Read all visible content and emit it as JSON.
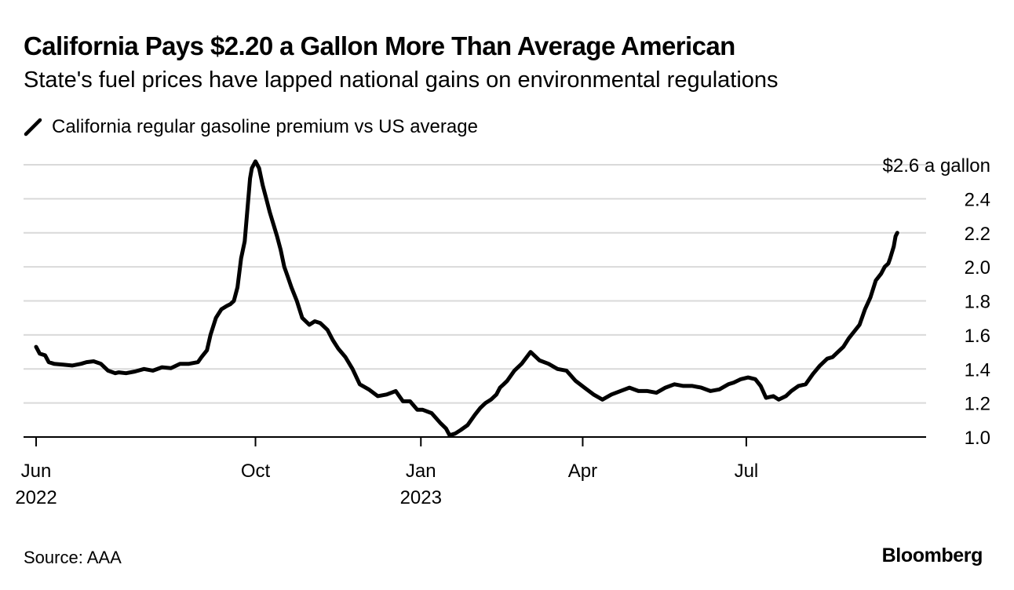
{
  "header": {
    "title": "California Pays $2.20 a Gallon More Than Average American",
    "subtitle": "State's fuel prices have lapped national gains on environmental regulations"
  },
  "legend": {
    "label": "California regular gasoline premium vs US average"
  },
  "footer": {
    "source": "Source: AAA",
    "brand": "Bloomberg"
  },
  "colors": {
    "line": "#000000",
    "grid": "#d9d9d9",
    "axis": "#000000"
  },
  "chart_data": {
    "type": "line",
    "title": "California Pays $2.20 a Gallon More Than Average American",
    "subtitle": "State's fuel prices have lapped national gains on environmental regulations",
    "ylabel": "$ a gallon",
    "ylim": [
      1.0,
      2.6
    ],
    "y_ticks": [
      {
        "value": 2.6,
        "label": "$2.6 a gallon"
      },
      {
        "value": 2.4,
        "label": "2.4"
      },
      {
        "value": 2.2,
        "label": "2.2"
      },
      {
        "value": 2.0,
        "label": "2.0"
      },
      {
        "value": 1.8,
        "label": "1.8"
      },
      {
        "value": 1.6,
        "label": "1.6"
      },
      {
        "value": 1.4,
        "label": "1.4"
      },
      {
        "value": 1.2,
        "label": "1.2"
      },
      {
        "value": 1.0,
        "label": "1.0"
      }
    ],
    "x_unit": "days since 2022-06-01",
    "xlim": [
      -7,
      495
    ],
    "x_ticks": [
      {
        "x": 0,
        "label": "Jun",
        "sublabel": "2022"
      },
      {
        "x": 122,
        "label": "Oct",
        "sublabel": ""
      },
      {
        "x": 214,
        "label": "Jan",
        "sublabel": "2023"
      },
      {
        "x": 304,
        "label": "Apr",
        "sublabel": ""
      },
      {
        "x": 395,
        "label": "Jul",
        "sublabel": ""
      }
    ],
    "grid": true,
    "series": [
      {
        "name": "California regular gasoline premium vs US average",
        "x": [
          0,
          2,
          5,
          7,
          10,
          15,
          20,
          25,
          28,
          32,
          36,
          40,
          44,
          46,
          50,
          55,
          60,
          65,
          70,
          75,
          80,
          85,
          90,
          92,
          95,
          97,
          100,
          103,
          106,
          108,
          110,
          112,
          114,
          116,
          118,
          119,
          120,
          121,
          122,
          124,
          126,
          128,
          130,
          132,
          134,
          136,
          138,
          140,
          142,
          145,
          148,
          152,
          155,
          158,
          162,
          165,
          168,
          172,
          176,
          180,
          185,
          190,
          195,
          200,
          204,
          208,
          212,
          215,
          220,
          225,
          228,
          230,
          233,
          236,
          240,
          244,
          247,
          250,
          253,
          256,
          258,
          260,
          262,
          264,
          266,
          270,
          275,
          280,
          285,
          290,
          295,
          300,
          305,
          310,
          315,
          320,
          325,
          330,
          335,
          340,
          345,
          350,
          355,
          360,
          365,
          370,
          375,
          380,
          385,
          388,
          392,
          396,
          400,
          403,
          406,
          410,
          413,
          417,
          420,
          424,
          428,
          432,
          436,
          440,
          443,
          446,
          449,
          452,
          455,
          458,
          461,
          464,
          467,
          470,
          472,
          474,
          475,
          477,
          478,
          479
        ],
        "values": [
          1.53,
          1.49,
          1.48,
          1.44,
          1.43,
          1.425,
          1.42,
          1.43,
          1.44,
          1.445,
          1.43,
          1.39,
          1.375,
          1.38,
          1.375,
          1.385,
          1.4,
          1.39,
          1.41,
          1.405,
          1.43,
          1.43,
          1.44,
          1.47,
          1.51,
          1.6,
          1.7,
          1.75,
          1.77,
          1.78,
          1.8,
          1.88,
          2.05,
          2.15,
          2.4,
          2.52,
          2.58,
          2.6,
          2.62,
          2.58,
          2.48,
          2.4,
          2.32,
          2.25,
          2.18,
          2.1,
          2.0,
          1.94,
          1.88,
          1.8,
          1.7,
          1.66,
          1.68,
          1.67,
          1.63,
          1.57,
          1.52,
          1.47,
          1.4,
          1.31,
          1.28,
          1.24,
          1.25,
          1.27,
          1.21,
          1.21,
          1.16,
          1.16,
          1.14,
          1.08,
          1.05,
          1.01,
          1.02,
          1.04,
          1.07,
          1.13,
          1.17,
          1.2,
          1.22,
          1.25,
          1.29,
          1.31,
          1.33,
          1.36,
          1.39,
          1.43,
          1.5,
          1.45,
          1.43,
          1.4,
          1.39,
          1.33,
          1.29,
          1.25,
          1.22,
          1.25,
          1.27,
          1.29,
          1.27,
          1.27,
          1.26,
          1.29,
          1.31,
          1.3,
          1.3,
          1.29,
          1.27,
          1.28,
          1.31,
          1.32,
          1.34,
          1.35,
          1.34,
          1.3,
          1.23,
          1.24,
          1.22,
          1.24,
          1.27,
          1.3,
          1.31,
          1.37,
          1.42,
          1.46,
          1.47,
          1.5,
          1.53,
          1.58,
          1.62,
          1.66,
          1.75,
          1.82,
          1.92,
          1.96,
          2.0,
          2.02,
          2.05,
          2.12,
          2.18,
          2.2
        ]
      }
    ]
  }
}
